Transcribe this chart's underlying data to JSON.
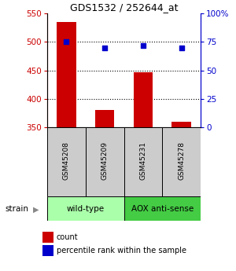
{
  "title": "GDS1532 / 252644_at",
  "samples": [
    "GSM45208",
    "GSM45209",
    "GSM45231",
    "GSM45278"
  ],
  "bar_values": [
    535,
    380,
    447,
    360
  ],
  "bar_baseline": 350,
  "percentile_values": [
    75.0,
    70.0,
    72.0,
    70.0
  ],
  "left_ylim": [
    350,
    550
  ],
  "left_yticks": [
    350,
    400,
    450,
    500,
    550
  ],
  "right_ylim": [
    0,
    100
  ],
  "right_yticks": [
    0,
    25,
    50,
    75,
    100
  ],
  "right_yticklabels": [
    "0",
    "25",
    "50",
    "75",
    "100%"
  ],
  "bar_color": "#cc0000",
  "dot_color": "#0000cc",
  "group_labels": [
    "wild-type",
    "AOX anti-sense"
  ],
  "group_ranges": [
    [
      0,
      2
    ],
    [
      2,
      4
    ]
  ],
  "group_colors": [
    "#aaffaa",
    "#44cc44"
  ],
  "strain_label": "strain",
  "legend_items": [
    "count",
    "percentile rank within the sample"
  ],
  "bar_width": 0.5,
  "x_positions": [
    0,
    1,
    2,
    3
  ]
}
